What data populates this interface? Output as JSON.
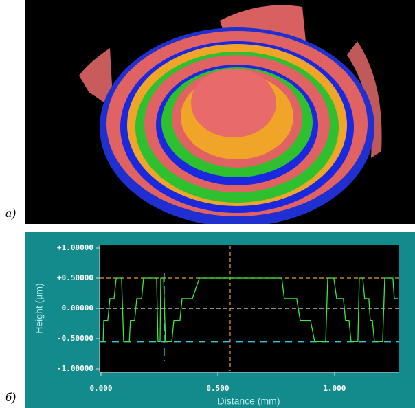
{
  "figure_labels": [
    "а)",
    "б)"
  ],
  "chart_data": {
    "type": "line",
    "xlabel": "Distance (mm)",
    "ylabel": "Height (µm)",
    "xlim": [
      0,
      1.271
    ],
    "ylim": [
      -1,
      1
    ],
    "xticks": [
      {
        "value": 0,
        "label": "0.000"
      },
      {
        "value": 0.5,
        "label": "0.500"
      },
      {
        "value": 1,
        "label": "1.000"
      }
    ],
    "yticks": [
      {
        "value": 1,
        "label": "+1.00000"
      },
      {
        "value": 0.5,
        "label": "+0.50000"
      },
      {
        "value": 0,
        "label": "0.00000"
      },
      {
        "value": -0.5,
        "label": "-0.50000"
      },
      {
        "value": -1,
        "label": "-1.00000"
      }
    ],
    "x": [
      0,
      0.009,
      0.012,
      0.029,
      0.038,
      0.056,
      0.065,
      0.088,
      0.097,
      0.121,
      0.126,
      0.144,
      0.153,
      0.174,
      0.182,
      0.238,
      0.244,
      0.253,
      0.256,
      0.268,
      0.276,
      0.303,
      0.312,
      0.338,
      0.347,
      0.391,
      0.421,
      0.774,
      0.785,
      0.838,
      0.853,
      0.897,
      0.915,
      0.962,
      0.971,
      0.997,
      1.009,
      1.038,
      1.047,
      1.062,
      1.071,
      1.1,
      1.106,
      1.121,
      1.129,
      1.147,
      1.153,
      1.162,
      1.171,
      1.206,
      1.215,
      1.25,
      1.256,
      1.271
    ],
    "series": [
      {
        "color": "#3ee83e",
        "values": [
          -0.55,
          -0.55,
          -0.2,
          -0.2,
          0.16,
          0.16,
          0.5,
          0.5,
          -0.55,
          -0.55,
          -0.2,
          -0.2,
          0.16,
          0.16,
          0.5,
          0.5,
          -0.55,
          -0.55,
          0.5,
          0.5,
          -0.55,
          -0.55,
          -0.2,
          -0.2,
          0.16,
          0.16,
          0.5,
          0.5,
          0.16,
          0.16,
          -0.2,
          -0.2,
          -0.55,
          -0.55,
          0.5,
          0.5,
          0.16,
          0.16,
          -0.2,
          -0.2,
          -0.55,
          -0.55,
          0.5,
          0.5,
          0.16,
          0.16,
          -0.2,
          -0.2,
          -0.55,
          -0.55,
          0.5,
          0.5,
          0.16,
          0.16
        ]
      }
    ],
    "hlines": [
      {
        "value": 0.5,
        "color": "#e8a030"
      },
      {
        "value": 0,
        "color": "#e0e0e0"
      },
      {
        "value": -0.55,
        "color": "#30c8d8"
      }
    ],
    "vlines": [
      {
        "value": 0.271,
        "color": "#30c8d8"
      },
      {
        "value": 0.553,
        "color": "#e8a030"
      }
    ]
  }
}
